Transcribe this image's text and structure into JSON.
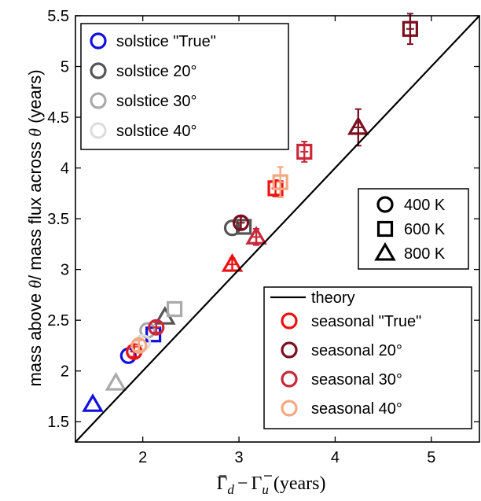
{
  "chart_data": {
    "type": "scatter",
    "xlabel": "Γd − Γu (years)",
    "ylabel": "mass above θ/ mass flux across θ (years)",
    "xlim": [
      1.3,
      5.5
    ],
    "ylim": [
      1.3,
      5.5
    ],
    "xticks": [
      "2",
      "3",
      "4",
      "5"
    ],
    "yticks": [
      "1.5",
      "2",
      "2.5",
      "3",
      "3.5",
      "4",
      "4.5",
      "5",
      "5.5"
    ],
    "grid": false,
    "theory_line": {
      "name": "theory",
      "from": [
        1.3,
        1.3
      ],
      "to": [
        5.5,
        5.5
      ]
    },
    "legend_cases": {
      "placement": "top-left",
      "entries": [
        {
          "label": "solstice \"True\"",
          "color": "#1010e0"
        },
        {
          "label": "solstice 20°",
          "color": "#555555"
        },
        {
          "label": "solstice 30°",
          "color": "#aaaaaa"
        },
        {
          "label": "solstice 40°",
          "color": "#dddddd"
        }
      ]
    },
    "legend_markers": {
      "placement": "right",
      "entries": [
        {
          "label": "400 K",
          "marker": "circle"
        },
        {
          "label": "600 K",
          "marker": "square"
        },
        {
          "label": "800 K",
          "marker": "triangle"
        }
      ]
    },
    "legend_seasonal": {
      "placement": "bottom-right",
      "entries": [
        {
          "label": "seasonal \"True\"",
          "color": "#ee1111"
        },
        {
          "label": "seasonal 20°",
          "color": "#7a1020"
        },
        {
          "label": "seasonal 30°",
          "color": "#c8283a"
        },
        {
          "label": "seasonal 40°",
          "color": "#f5a880"
        }
      ]
    },
    "series": [
      {
        "color": "#1010e0",
        "points": [
          {
            "x": 1.85,
            "y": 2.15,
            "marker": "circle"
          },
          {
            "x": 2.11,
            "y": 2.36,
            "marker": "square"
          },
          {
            "x": 1.48,
            "y": 1.67,
            "marker": "triangle"
          }
        ]
      },
      {
        "color": "#555555",
        "points": [
          {
            "x": 2.93,
            "y": 3.41,
            "marker": "circle"
          },
          {
            "x": 3.05,
            "y": 3.42,
            "marker": "square"
          },
          {
            "x": 2.23,
            "y": 2.53,
            "marker": "triangle"
          }
        ]
      },
      {
        "color": "#aaaaaa",
        "points": [
          {
            "x": 2.05,
            "y": 2.4,
            "marker": "circle"
          },
          {
            "x": 2.33,
            "y": 2.61,
            "marker": "square"
          },
          {
            "x": 1.72,
            "y": 1.88,
            "marker": "triangle"
          }
        ]
      },
      {
        "color": "#dddddd",
        "points": [
          {
            "x": 1.92,
            "y": 2.2,
            "marker": "circle"
          },
          {
            "x": 2.0,
            "y": 2.28,
            "marker": "circle"
          }
        ]
      },
      {
        "color": "#ee1111",
        "points": [
          {
            "x": 1.91,
            "y": 2.19,
            "marker": "circle",
            "err": 0.05
          },
          {
            "x": 3.38,
            "y": 3.8,
            "marker": "square",
            "err": 0.08
          },
          {
            "x": 2.93,
            "y": 3.05,
            "marker": "triangle",
            "err": 0.06
          }
        ]
      },
      {
        "color": "#7a1020",
        "points": [
          {
            "x": 3.02,
            "y": 3.46,
            "marker": "circle",
            "err": 0.06
          },
          {
            "x": 4.78,
            "y": 5.37,
            "marker": "square",
            "err": 0.15
          },
          {
            "x": 4.24,
            "y": 4.4,
            "marker": "triangle",
            "err": 0.18
          }
        ]
      },
      {
        "color": "#c8283a",
        "points": [
          {
            "x": 2.14,
            "y": 2.43,
            "marker": "circle",
            "err": 0.05
          },
          {
            "x": 3.68,
            "y": 4.16,
            "marker": "square",
            "err": 0.1
          },
          {
            "x": 3.18,
            "y": 3.32,
            "marker": "triangle",
            "err": 0.08
          }
        ]
      },
      {
        "color": "#f5a880",
        "points": [
          {
            "x": 1.96,
            "y": 2.25,
            "marker": "circle",
            "err": 0.05
          },
          {
            "x": 3.43,
            "y": 3.86,
            "marker": "square",
            "err": 0.15
          }
        ]
      }
    ]
  }
}
